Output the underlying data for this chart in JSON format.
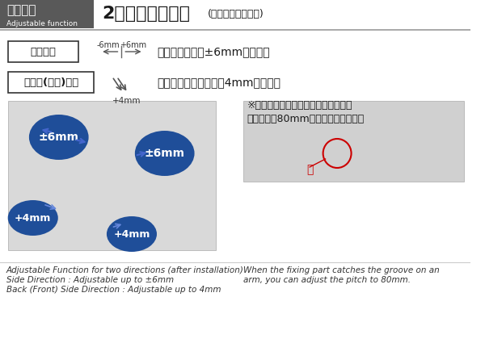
{
  "bg_color": "#ffffff",
  "header_bg": "#595959",
  "header_text": "調整機能",
  "header_sub": "Adjustable function",
  "header_text_color": "#ffffff",
  "header_sub_color": "#ffffff",
  "title_text": "2方向の調整機能",
  "title_suffix": "(ガラス吊り込み時)",
  "title_color": "#1a1a1a",
  "divider_color": "#999999",
  "box1_label": "左右方向",
  "box2_label": "奥行き(手前)方向",
  "box_border_color": "#333333",
  "arrow_color": "#555555",
  "label_6mm_left": "-6mm",
  "label_6mm_right": "+6mm",
  "label_4mm": "+4mm",
  "desc1": "基準値より最大±6mm調整可能",
  "desc2": "ガラスを手前に最大＋4mm調整可能",
  "note_line1": "※本体とフィックス部の溝を合わせる",
  "note_line2": "とピッチを80mmに合わせられます。",
  "note_mm": "mm",
  "circle_color": "#1f4e99",
  "circle_text_color": "#ffffff",
  "circle_labels": [
    "±6mm",
    "±6mm",
    "+4mm",
    "+4mm"
  ],
  "left_img_bg": "#d9d9d9",
  "right_img_bg": "#d0d0d0",
  "groove_label": "溝",
  "groove_color": "#cc0000",
  "footer_left1": "Adjustable Function for two directions (after installation)",
  "footer_left2": "Side Direction : Adjustable up to ±6mm",
  "footer_left3": "Back (Front) Side Direction : Adjustable up to 4mm",
  "footer_right1": "When the fixing part catches the groove on an",
  "footer_right2": "arm, you can adjust the pitch to 80mm.",
  "footer_color": "#333333",
  "footer_fontsize": 7.5
}
